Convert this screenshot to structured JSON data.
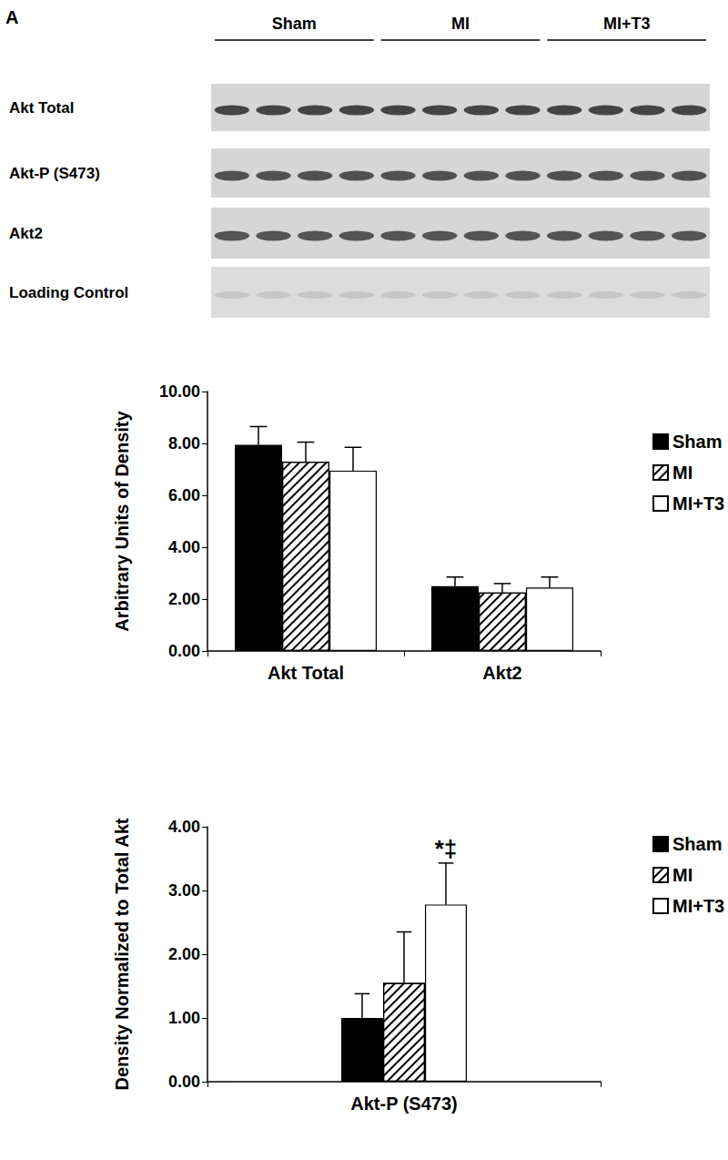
{
  "panel_label": "A",
  "blot": {
    "groups": [
      "Sham",
      "MI",
      "MI+T3"
    ],
    "rows": [
      "Akt Total",
      "Akt-P (S473)",
      "Akt2",
      "Loading Control"
    ]
  },
  "chart_data": [
    {
      "type": "bar",
      "categories": [
        "Akt Total",
        "Akt2"
      ],
      "y_label": "Arbitrary Units of Density",
      "series": [
        {
          "name": "Sham",
          "color": "#000000",
          "values": [
            7.95,
            2.5
          ],
          "errors": [
            0.7,
            0.35
          ]
        },
        {
          "name": "MI",
          "color": "#ffffff",
          "values": [
            7.3,
            2.25
          ],
          "errors": [
            0.75,
            0.35
          ]
        },
        {
          "name": "MI+T3",
          "color": "#ffffff",
          "values": [
            6.95,
            2.45
          ],
          "errors": [
            0.9,
            0.4
          ]
        }
      ],
      "ylim": [
        0,
        10
      ],
      "yticks": [
        {
          "value": 0,
          "label": "0.00"
        },
        {
          "value": 2,
          "label": "2.00"
        },
        {
          "value": 4,
          "label": "4.00"
        },
        {
          "value": 6,
          "label": "6.00"
        },
        {
          "value": 8,
          "label": "8.00"
        },
        {
          "value": 10,
          "label": "10.00"
        }
      ],
      "grid": false,
      "legend": "right"
    },
    {
      "type": "bar",
      "categories": [
        "Akt-P (S473)"
      ],
      "y_label": "Density Normalized to Total Akt",
      "series": [
        {
          "name": "Sham",
          "color": "#000000",
          "values": [
            1.0
          ],
          "errors": [
            0.38
          ]
        },
        {
          "name": "MI",
          "color": "#ffffff",
          "values": [
            1.55
          ],
          "errors": [
            0.8
          ]
        },
        {
          "name": "MI+T3",
          "color": "#ffffff",
          "values": [
            2.78
          ],
          "errors": [
            0.65
          ]
        }
      ],
      "annotations": [
        {
          "text": "*‡",
          "category": "Akt-P (S473)",
          "series": "MI+T3"
        }
      ],
      "ylim": [
        0,
        4
      ],
      "yticks": [
        {
          "value": 0,
          "label": "0.00"
        },
        {
          "value": 1,
          "label": "1.00"
        },
        {
          "value": 2,
          "label": "2.00"
        },
        {
          "value": 3,
          "label": "3.00"
        },
        {
          "value": 4,
          "label": "4.00"
        }
      ],
      "grid": false,
      "legend": "right"
    }
  ]
}
